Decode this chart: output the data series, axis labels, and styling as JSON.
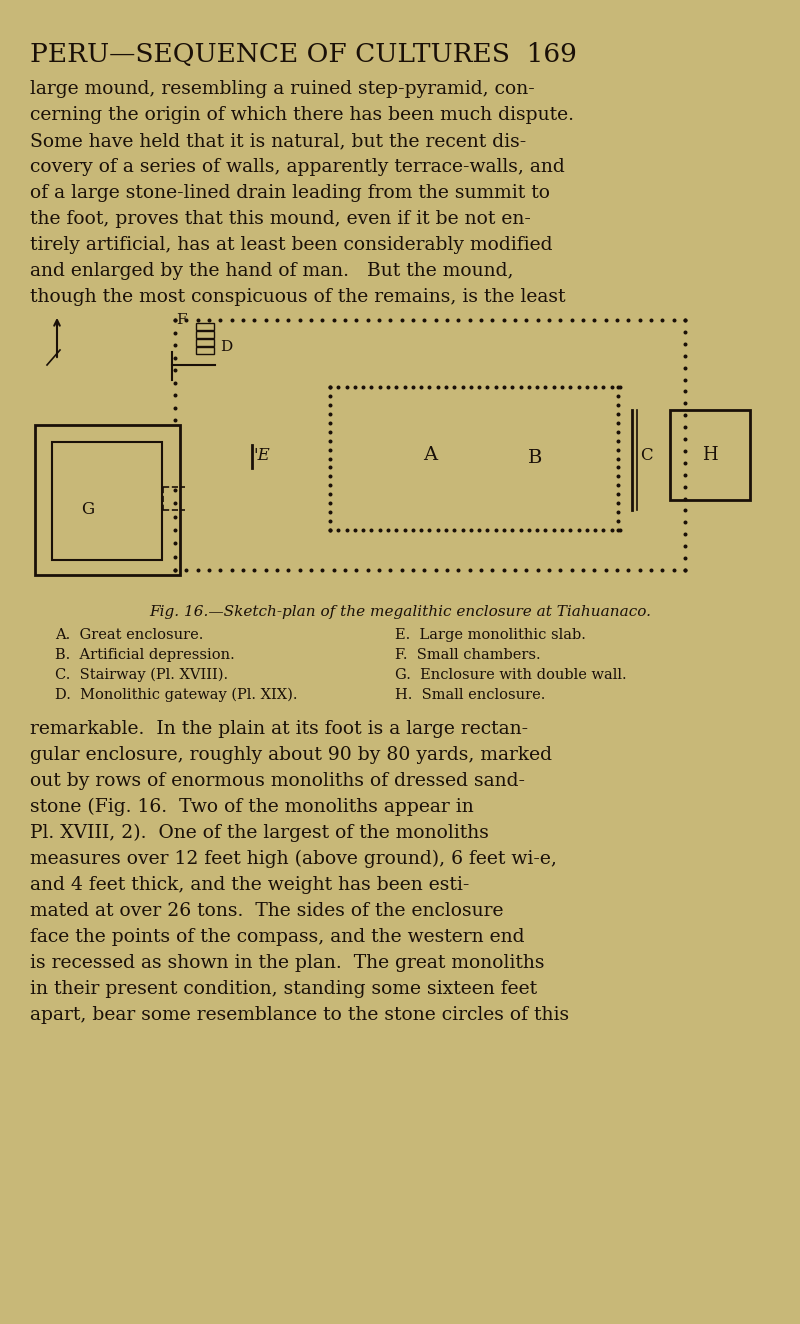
{
  "bg_color": "#c8b878",
  "text_color": "#1a1008",
  "title": "PERU—SEQUENCE OF CULTURES  169",
  "para1": "large mound, resembling a ruined step-pyramid, con-\ncerning the origin of which there has been much dispute.\nSome have held that it is natural, but the recent dis-\ncovery of a series of walls, apparently terrace-walls, and\nof a large stone-lined drain leading from the summit to\nthe foot, proves that this mound, even if it be not en-\ntirely artificial, has at least been considerably modified\nand enlarged by the hand of man.   But the mound,\nthough the most conspicuous of the remains, is the least",
  "fig_caption": "Fig. 16.—Sketch-plan of the megalithic enclosure at Tiahuanaco.",
  "legend_left": [
    "A.  Great enclosure.",
    "B.  Artificial depression.",
    "C.  Stairway (Pl. XVIII).",
    "D.  Monolithic gateway (Pl. XIX)."
  ],
  "legend_right": [
    "E.  Large monolithic slab.",
    "F.  Small chambers.",
    "G.  Enclosure with double wall.",
    "H.  Small enclosure."
  ],
  "para2": "remarkable.  In the plain at its foot is a large rectan-\ngular enclosure, roughly about 90 by 80 yards, marked\nout by rows of enormous monoliths of dressed sand-\nstone (Fig. 16.  Two of the monoliths appear in\nPl. XVIII, 2).  One of the largest of the monoliths\nmeasures over 12 feet high (above ground), 6 feet wi­e,\nand 4 feet thick, and the weight has been esti-\nmated at over 26 tons.  The sides of the enclosure\nface the points of the compass, and the western end\nis recessed as shown in the plan.  The great monoliths\nin their present condition, standing some sixteen feet\napart, bear some resemblance to the stone circles of this"
}
